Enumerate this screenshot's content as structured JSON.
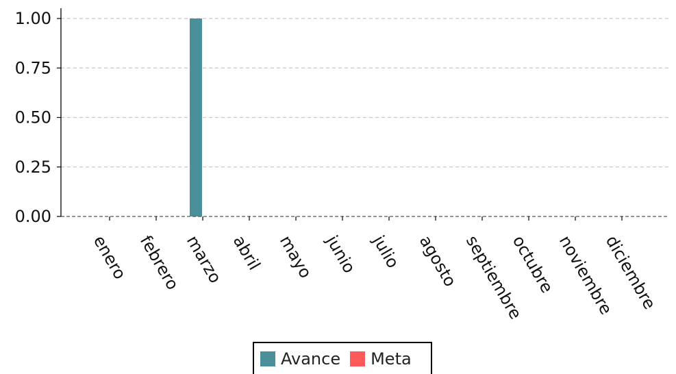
{
  "chart_data": {
    "type": "bar",
    "categories": [
      "enero",
      "febrero",
      "marzo",
      "abril",
      "mayo",
      "junio",
      "julio",
      "agosto",
      "septiembre",
      "octubre",
      "noviembre",
      "diciembre"
    ],
    "series": [
      {
        "name": "Avance",
        "color": "#4a8f99",
        "values": [
          0,
          0,
          1.0,
          0,
          0,
          0,
          0,
          0,
          0,
          0,
          0,
          0
        ]
      },
      {
        "name": "Meta",
        "color": "#ff5a5a",
        "values": [
          0,
          0,
          0,
          0,
          0,
          0,
          0,
          0,
          0,
          0,
          0,
          0
        ]
      }
    ],
    "yticks": [
      "0.00",
      "0.25",
      "0.50",
      "0.75",
      "1.00"
    ],
    "ylim": [
      0,
      1.05
    ],
    "grid": "horizontal dashed",
    "legend_position": "bottom-center"
  }
}
